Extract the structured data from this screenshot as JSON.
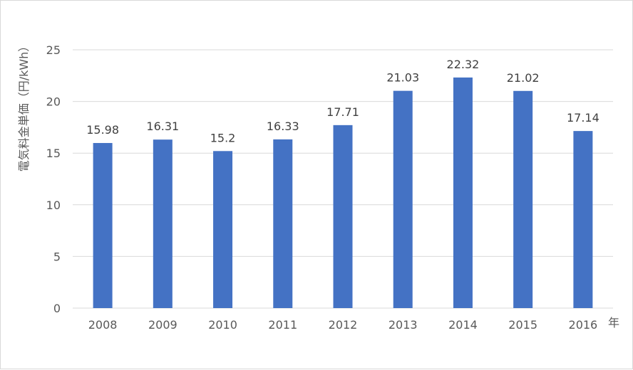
{
  "chart_data": {
    "type": "bar",
    "title": "",
    "xlabel": "年",
    "ylabel": "電気料金単価（円/kWh）",
    "categories": [
      "2008",
      "2009",
      "2010",
      "2011",
      "2012",
      "2013",
      "2014",
      "2015",
      "2016"
    ],
    "values": [
      15.98,
      16.31,
      15.2,
      16.33,
      17.71,
      21.03,
      22.32,
      21.02,
      17.14
    ],
    "value_labels": [
      "15.98",
      "16.31",
      "15.2",
      "16.33",
      "17.71",
      "21.03",
      "22.32",
      "21.02",
      "17.14"
    ],
    "yticks": [
      0,
      5,
      10,
      15,
      20,
      25
    ],
    "ylim": [
      0,
      25
    ],
    "grid": true,
    "legend": "none",
    "bar_color": "#4472C4",
    "grid_color": "#d9d9d9"
  }
}
